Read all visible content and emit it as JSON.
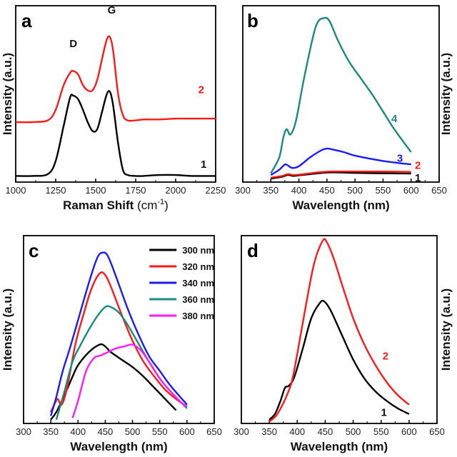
{
  "colors": {
    "black": "#000000",
    "red": "#ff1a1a",
    "blue": "#1a1aff",
    "teal": "#1a8a80",
    "magenta": "#ff1aff"
  },
  "chart_data": [
    {
      "panel": "a",
      "type": "line",
      "xlabel": "Raman Shift",
      "xlabel_unit": "(cm",
      "xlabel_sup": "-1",
      "xlabel_close": ")",
      "ylabel": "Intensity (a.u.)",
      "xlim": [
        1000,
        2250
      ],
      "ylim": [
        0,
        1
      ],
      "xticks": [
        1000,
        1250,
        1500,
        1750,
        2000,
        2250
      ],
      "annotations": [
        {
          "text": "D",
          "x": 1360,
          "y": 0.765,
          "color": "#111111"
        },
        {
          "text": "G",
          "x": 1600,
          "y": 0.955,
          "color": "#111111"
        },
        {
          "text": "2",
          "x": 2160,
          "y": 0.505,
          "color": "#ff1a1a"
        },
        {
          "text": "1",
          "x": 2175,
          "y": 0.08,
          "color": "#111111"
        }
      ],
      "series": [
        {
          "name": "1",
          "color": "#000000",
          "x": [
            1000,
            1100,
            1200,
            1250,
            1300,
            1340,
            1360,
            1390,
            1420,
            1450,
            1480,
            1510,
            1540,
            1570,
            1590,
            1610,
            1640,
            1670,
            1700,
            1750,
            1800,
            1900,
            2000,
            2100,
            2250
          ],
          "y": [
            0.035,
            0.035,
            0.045,
            0.12,
            0.32,
            0.48,
            0.49,
            0.47,
            0.41,
            0.34,
            0.29,
            0.3,
            0.4,
            0.5,
            0.51,
            0.43,
            0.22,
            0.07,
            0.04,
            0.035,
            0.035,
            0.04,
            0.04,
            0.035,
            0.035
          ]
        },
        {
          "name": "2",
          "color": "#ff1a1a",
          "x": [
            1000,
            1100,
            1200,
            1250,
            1300,
            1340,
            1360,
            1390,
            1420,
            1450,
            1480,
            1510,
            1540,
            1570,
            1590,
            1610,
            1640,
            1670,
            1700,
            1750,
            1800,
            1900,
            2000,
            2100,
            2250
          ],
          "y": [
            0.34,
            0.34,
            0.35,
            0.41,
            0.55,
            0.62,
            0.63,
            0.61,
            0.55,
            0.52,
            0.52,
            0.58,
            0.7,
            0.81,
            0.82,
            0.74,
            0.5,
            0.38,
            0.35,
            0.35,
            0.355,
            0.355,
            0.36,
            0.36,
            0.36
          ]
        }
      ]
    },
    {
      "panel": "b",
      "type": "line",
      "xlabel": "Wavelength (nm)",
      "ylabel": "Intensity (a.u.)",
      "xlim": [
        300,
        650
      ],
      "ylim": [
        0,
        1
      ],
      "xticks": [
        300,
        350,
        400,
        450,
        500,
        550,
        600,
        650
      ],
      "annotations": [
        {
          "text": "4",
          "x": 570,
          "y": 0.34,
          "color": "#1a8a80"
        },
        {
          "text": "3",
          "x": 580,
          "y": 0.115,
          "color": "#1a1aff"
        },
        {
          "text": "2",
          "x": 612,
          "y": 0.075,
          "color": "#ff1a1a"
        },
        {
          "text": "1",
          "x": 612,
          "y": 0.005,
          "color": "#111111"
        }
      ],
      "series": [
        {
          "name": "1",
          "color": "#000000",
          "x": [
            350,
            370,
            380,
            390,
            400,
            420,
            440,
            460,
            480,
            500,
            550,
            600
          ],
          "y": [
            0.02,
            0.03,
            0.04,
            0.035,
            0.038,
            0.045,
            0.052,
            0.055,
            0.054,
            0.052,
            0.05,
            0.048
          ]
        },
        {
          "name": "2",
          "color": "#ff1a1a",
          "x": [
            350,
            370,
            380,
            390,
            400,
            420,
            440,
            460,
            480,
            500,
            550,
            600
          ],
          "y": [
            0.025,
            0.035,
            0.045,
            0.04,
            0.042,
            0.05,
            0.057,
            0.06,
            0.06,
            0.06,
            0.06,
            0.058
          ]
        },
        {
          "name": "3",
          "color": "#1a1aff",
          "x": [
            350,
            365,
            375,
            380,
            388,
            400,
            420,
            440,
            450,
            460,
            480,
            500,
            550,
            600
          ],
          "y": [
            0.04,
            0.07,
            0.1,
            0.095,
            0.08,
            0.09,
            0.14,
            0.18,
            0.19,
            0.185,
            0.17,
            0.15,
            0.12,
            0.1
          ]
        },
        {
          "name": "4",
          "color": "#1a8a80",
          "x": [
            350,
            365,
            372,
            378,
            385,
            395,
            410,
            430,
            445,
            455,
            470,
            490,
            510,
            530,
            550,
            570,
            600
          ],
          "y": [
            0.05,
            0.14,
            0.25,
            0.3,
            0.27,
            0.35,
            0.6,
            0.88,
            0.93,
            0.91,
            0.8,
            0.68,
            0.59,
            0.5,
            0.4,
            0.3,
            0.17
          ]
        }
      ]
    },
    {
      "panel": "c",
      "type": "line",
      "xlabel": "Wavelength (nm)",
      "ylabel": "Intensity (a.u.)",
      "xlim": [
        300,
        650
      ],
      "ylim": [
        0,
        1
      ],
      "xticks": [
        300,
        350,
        400,
        450,
        500,
        550,
        600,
        650
      ],
      "legend": "top-right",
      "series": [
        {
          "name": "300 nm",
          "color": "#000000",
          "x": [
            350,
            360,
            375,
            390,
            400,
            420,
            440,
            450,
            460,
            480,
            500,
            520,
            540,
            560,
            580
          ],
          "y": [
            0.02,
            0.06,
            0.15,
            0.25,
            0.31,
            0.38,
            0.42,
            0.41,
            0.38,
            0.34,
            0.3,
            0.25,
            0.19,
            0.13,
            0.07
          ]
        },
        {
          "name": "320 nm",
          "color": "#ff1a1a",
          "x": [
            350,
            358,
            363,
            370,
            380,
            395,
            410,
            425,
            440,
            450,
            460,
            480,
            500,
            520,
            540,
            560,
            580,
            600
          ],
          "y": [
            0.06,
            0.11,
            0.13,
            0.1,
            0.19,
            0.42,
            0.58,
            0.72,
            0.8,
            0.79,
            0.73,
            0.58,
            0.44,
            0.33,
            0.25,
            0.18,
            0.13,
            0.09
          ]
        },
        {
          "name": "340 nm",
          "color": "#1a1aff",
          "x": [
            350,
            360,
            372,
            385,
            400,
            420,
            435,
            445,
            455,
            470,
            490,
            510,
            530,
            550,
            570,
            600
          ],
          "y": [
            0.04,
            0.14,
            0.28,
            0.4,
            0.55,
            0.75,
            0.88,
            0.91,
            0.89,
            0.78,
            0.62,
            0.48,
            0.36,
            0.28,
            0.2,
            0.1
          ]
        },
        {
          "name": "360 nm",
          "color": "#1a8a80",
          "x": [
            360,
            375,
            390,
            405,
            420,
            435,
            450,
            460,
            475,
            490,
            510,
            530,
            550,
            570,
            600
          ],
          "y": [
            0.02,
            0.17,
            0.33,
            0.42,
            0.5,
            0.57,
            0.62,
            0.62,
            0.59,
            0.53,
            0.43,
            0.33,
            0.24,
            0.17,
            0.08
          ]
        },
        {
          "name": "380 nm",
          "color": "#ff1aff",
          "x": [
            390,
            400,
            415,
            430,
            440,
            455,
            470,
            485,
            500,
            515,
            530,
            550,
            570,
            590,
            600
          ],
          "y": [
            0.03,
            0.12,
            0.28,
            0.35,
            0.36,
            0.38,
            0.4,
            0.41,
            0.42,
            0.39,
            0.33,
            0.24,
            0.17,
            0.11,
            0.09
          ]
        }
      ]
    },
    {
      "panel": "d",
      "type": "line",
      "xlabel": "Wavelength (nm)",
      "ylabel": "Intensity (a.u.)",
      "xlim": [
        300,
        650
      ],
      "ylim": [
        0,
        1
      ],
      "xticks": [
        300,
        350,
        400,
        450,
        500,
        550,
        600,
        650
      ],
      "annotations": [
        {
          "text": "2",
          "x": 558,
          "y": 0.34,
          "color": "#ff1a1a"
        },
        {
          "text": "1",
          "x": 555,
          "y": 0.04,
          "color": "#111111"
        }
      ],
      "series": [
        {
          "name": "1",
          "color": "#000000",
          "x": [
            350,
            360,
            370,
            378,
            385,
            395,
            410,
            425,
            440,
            448,
            460,
            480,
            500,
            520,
            540,
            560,
            580,
            600
          ],
          "y": [
            0.02,
            0.05,
            0.12,
            0.19,
            0.2,
            0.25,
            0.4,
            0.56,
            0.64,
            0.65,
            0.6,
            0.47,
            0.34,
            0.24,
            0.17,
            0.12,
            0.08,
            0.05
          ]
        },
        {
          "name": "2",
          "color": "#ff1a1a",
          "x": [
            350,
            362,
            372,
            380,
            390,
            400,
            415,
            430,
            445,
            452,
            465,
            480,
            500,
            520,
            540,
            560,
            580,
            600
          ],
          "y": [
            0.01,
            0.04,
            0.09,
            0.14,
            0.22,
            0.37,
            0.62,
            0.85,
            0.97,
            0.97,
            0.88,
            0.74,
            0.56,
            0.42,
            0.31,
            0.22,
            0.15,
            0.1
          ]
        }
      ]
    }
  ],
  "panels": [
    {
      "label": "a"
    },
    {
      "label": "b"
    },
    {
      "label": "c"
    },
    {
      "label": "d"
    }
  ]
}
